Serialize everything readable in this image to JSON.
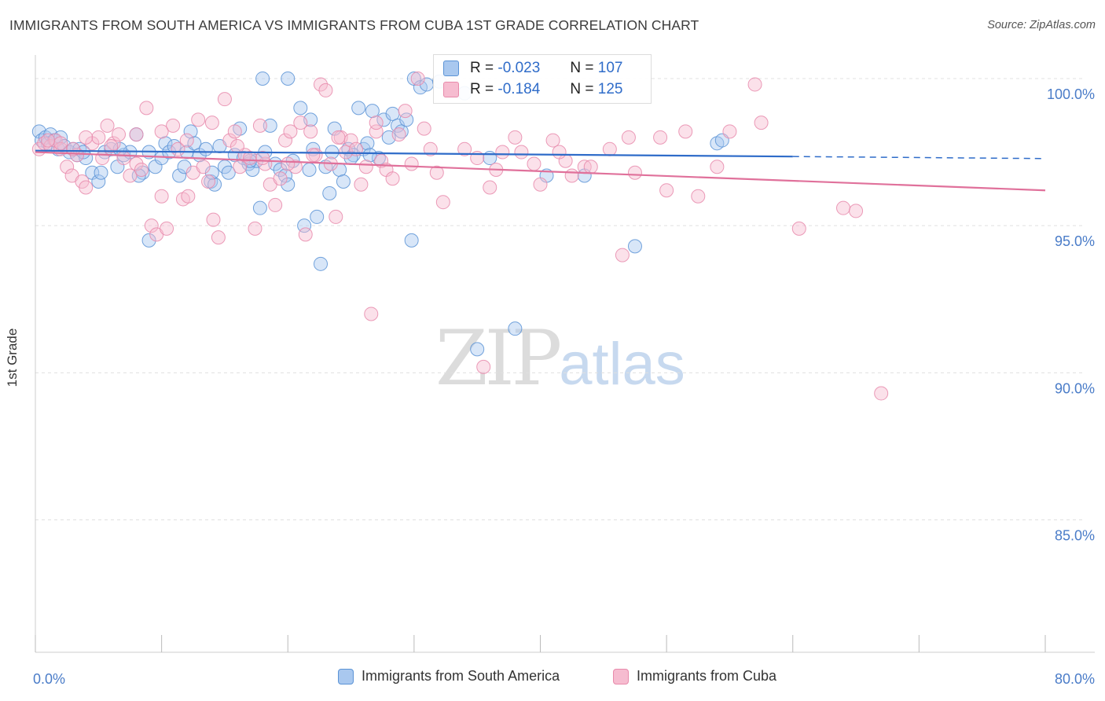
{
  "header": {
    "title": "IMMIGRANTS FROM SOUTH AMERICA VS IMMIGRANTS FROM CUBA 1ST GRADE CORRELATION CHART",
    "source": "Source: ZipAtlas.com"
  },
  "watermark": {
    "zip": "ZIP",
    "atlas": "atlas"
  },
  "stats": {
    "rows": [
      {
        "r_label": "R =",
        "r_value": "-0.023",
        "n_label": "N =",
        "n_value": "107"
      },
      {
        "r_label": "R =",
        "r_value": "-0.184",
        "n_label": "N =",
        "n_value": "125"
      }
    ]
  },
  "legend": {
    "items": [
      {
        "label": "Immigrants from South America"
      },
      {
        "label": "Immigrants from Cuba"
      }
    ]
  },
  "colors": {
    "blue_fill": "#a9c8ef",
    "blue_stroke": "#5b93d6",
    "blue_line": "#2f6cc9",
    "pink_fill": "#f6bcd0",
    "pink_stroke": "#e88aab",
    "pink_line": "#e0719b",
    "grid": "#e0e0e0",
    "tick_text": "#4a7cc8"
  },
  "chart_data": {
    "type": "scatter",
    "title": "IMMIGRANTS FROM SOUTH AMERICA VS IMMIGRANTS FROM CUBA 1ST GRADE CORRELATION CHART",
    "xlabel": "",
    "ylabel": "1st Grade",
    "xlim": [
      0,
      80
    ],
    "ylim": [
      80.5,
      100.8
    ],
    "x_tick_labels": [
      "0.0%",
      "80.0%"
    ],
    "y_ticks": [
      100,
      95,
      90,
      85
    ],
    "y_tick_labels": [
      "100.0%",
      "95.0%",
      "90.0%",
      "85.0%"
    ],
    "grid": true,
    "legend_position": "bottom",
    "series": [
      {
        "name": "Immigrants from South America",
        "color": "#5b93d6",
        "trend": {
          "x": [
            0,
            60
          ],
          "y": [
            97.55,
            97.35
          ],
          "dashed_to": 80,
          "dashed_y": 97.28
        },
        "points": [
          [
            0.3,
            98.2
          ],
          [
            0.5,
            97.9
          ],
          [
            0.8,
            98.0
          ],
          [
            1.0,
            97.8
          ],
          [
            1.2,
            98.1
          ],
          [
            1.5,
            97.9
          ],
          [
            1.8,
            97.6
          ],
          [
            2.0,
            98.0
          ],
          [
            2.3,
            97.7
          ],
          [
            2.7,
            97.5
          ],
          [
            3.0,
            97.6
          ],
          [
            3.3,
            97.4
          ],
          [
            3.5,
            97.6
          ],
          [
            4.0,
            97.3
          ],
          [
            4.5,
            96.8
          ],
          [
            5.0,
            96.5
          ],
          [
            5.5,
            97.5
          ],
          [
            6.0,
            97.6
          ],
          [
            6.5,
            97.0
          ],
          [
            7.0,
            97.4
          ],
          [
            7.5,
            97.5
          ],
          [
            8.0,
            98.1
          ],
          [
            8.5,
            96.8
          ],
          [
            9.0,
            97.5
          ],
          [
            9.5,
            97.0
          ],
          [
            10.0,
            97.3
          ],
          [
            10.3,
            97.8
          ],
          [
            10.6,
            97.5
          ],
          [
            11.0,
            97.7
          ],
          [
            11.4,
            96.7
          ],
          [
            11.8,
            97.0
          ],
          [
            12.0,
            97.5
          ],
          [
            12.3,
            98.2
          ],
          [
            12.6,
            97.8
          ],
          [
            13.0,
            97.4
          ],
          [
            13.5,
            97.6
          ],
          [
            13.9,
            96.5
          ],
          [
            14.2,
            96.4
          ],
          [
            14.6,
            97.7
          ],
          [
            15.0,
            97.0
          ],
          [
            15.3,
            96.8
          ],
          [
            15.8,
            97.4
          ],
          [
            16.2,
            98.3
          ],
          [
            16.5,
            97.3
          ],
          [
            16.9,
            97.1
          ],
          [
            17.2,
            96.9
          ],
          [
            17.5,
            97.2
          ],
          [
            17.8,
            95.6
          ],
          [
            18.2,
            97.5
          ],
          [
            18.6,
            98.4
          ],
          [
            19.0,
            97.1
          ],
          [
            19.4,
            96.9
          ],
          [
            19.8,
            96.7
          ],
          [
            20.0,
            96.4
          ],
          [
            20.4,
            97.2
          ],
          [
            21.0,
            99.0
          ],
          [
            21.3,
            95.0
          ],
          [
            21.7,
            96.9
          ],
          [
            22.0,
            97.6
          ],
          [
            22.3,
            95.3
          ],
          [
            22.6,
            93.7
          ],
          [
            23.0,
            97.0
          ],
          [
            23.3,
            96.1
          ],
          [
            23.7,
            98.3
          ],
          [
            24.1,
            96.9
          ],
          [
            24.4,
            96.5
          ],
          [
            24.8,
            97.6
          ],
          [
            25.2,
            97.4
          ],
          [
            25.6,
            99.0
          ],
          [
            26.0,
            97.6
          ],
          [
            26.3,
            97.8
          ],
          [
            26.7,
            98.9
          ],
          [
            27.2,
            97.3
          ],
          [
            27.6,
            98.6
          ],
          [
            28.0,
            98.0
          ],
          [
            28.3,
            98.8
          ],
          [
            28.7,
            98.4
          ],
          [
            29.0,
            98.2
          ],
          [
            29.4,
            98.6
          ],
          [
            30.0,
            100.0
          ],
          [
            30.5,
            99.7
          ],
          [
            31.0,
            99.8
          ],
          [
            32.0,
            99.9
          ],
          [
            33.0,
            99.6
          ],
          [
            34.0,
            99.5
          ],
          [
            36.0,
            97.3
          ],
          [
            29.8,
            94.5
          ],
          [
            35.0,
            90.8
          ],
          [
            38.0,
            91.5
          ],
          [
            40.5,
            96.7
          ],
          [
            43.5,
            96.7
          ],
          [
            47.5,
            94.3
          ],
          [
            54.0,
            97.8
          ],
          [
            54.4,
            97.9
          ],
          [
            18.0,
            100.0
          ],
          [
            20.0,
            100.0
          ],
          [
            21.8,
            98.6
          ],
          [
            23.5,
            97.5
          ],
          [
            25.0,
            97.3
          ],
          [
            26.5,
            97.4
          ],
          [
            9.0,
            94.5
          ],
          [
            17.0,
            97.2
          ],
          [
            14.0,
            96.8
          ],
          [
            8.2,
            96.7
          ],
          [
            6.7,
            97.6
          ],
          [
            5.2,
            96.8
          ],
          [
            3.8,
            97.5
          ]
        ]
      },
      {
        "name": "Immigrants from Cuba",
        "color": "#e88aab",
        "trend": {
          "x": [
            0,
            80
          ],
          "y": [
            97.5,
            96.2
          ]
        },
        "points": [
          [
            0.3,
            97.6
          ],
          [
            0.7,
            97.8
          ],
          [
            1.2,
            97.7
          ],
          [
            1.6,
            97.9
          ],
          [
            2.0,
            97.6
          ],
          [
            2.5,
            97.0
          ],
          [
            2.9,
            96.7
          ],
          [
            3.3,
            97.4
          ],
          [
            3.7,
            96.5
          ],
          [
            4.0,
            96.3
          ],
          [
            4.5,
            97.8
          ],
          [
            5.0,
            98.0
          ],
          [
            5.3,
            97.3
          ],
          [
            5.7,
            98.4
          ],
          [
            6.2,
            97.8
          ],
          [
            6.6,
            98.1
          ],
          [
            7.0,
            97.3
          ],
          [
            7.5,
            96.7
          ],
          [
            8.0,
            97.1
          ],
          [
            8.4,
            96.9
          ],
          [
            8.8,
            99.0
          ],
          [
            9.2,
            95.0
          ],
          [
            9.6,
            94.7
          ],
          [
            10.0,
            96.0
          ],
          [
            10.4,
            94.9
          ],
          [
            10.9,
            98.4
          ],
          [
            11.3,
            97.6
          ],
          [
            11.7,
            95.9
          ],
          [
            12.1,
            96.0
          ],
          [
            12.5,
            96.8
          ],
          [
            12.9,
            98.6
          ],
          [
            13.3,
            97.0
          ],
          [
            13.7,
            96.5
          ],
          [
            14.1,
            95.2
          ],
          [
            14.5,
            94.6
          ],
          [
            15.0,
            99.3
          ],
          [
            15.4,
            97.9
          ],
          [
            15.8,
            98.2
          ],
          [
            16.2,
            97.0
          ],
          [
            16.6,
            97.4
          ],
          [
            17.0,
            97.3
          ],
          [
            17.4,
            94.9
          ],
          [
            17.8,
            98.4
          ],
          [
            18.2,
            97.1
          ],
          [
            18.6,
            96.4
          ],
          [
            19.0,
            95.7
          ],
          [
            19.4,
            96.6
          ],
          [
            19.8,
            97.9
          ],
          [
            20.2,
            98.2
          ],
          [
            20.6,
            97.0
          ],
          [
            21.0,
            98.5
          ],
          [
            21.4,
            94.7
          ],
          [
            21.8,
            98.2
          ],
          [
            22.2,
            97.4
          ],
          [
            22.6,
            99.8
          ],
          [
            23.0,
            99.6
          ],
          [
            23.4,
            97.1
          ],
          [
            23.8,
            95.3
          ],
          [
            24.2,
            98.0
          ],
          [
            24.6,
            97.5
          ],
          [
            25.0,
            97.9
          ],
          [
            25.4,
            97.6
          ],
          [
            25.8,
            96.4
          ],
          [
            26.2,
            97.0
          ],
          [
            26.6,
            92.0
          ],
          [
            27.0,
            98.2
          ],
          [
            27.4,
            97.2
          ],
          [
            27.8,
            96.9
          ],
          [
            28.3,
            96.6
          ],
          [
            28.8,
            98.1
          ],
          [
            29.3,
            98.9
          ],
          [
            29.8,
            97.1
          ],
          [
            30.3,
            100.0
          ],
          [
            30.8,
            98.3
          ],
          [
            31.3,
            97.6
          ],
          [
            31.8,
            96.8
          ],
          [
            32.3,
            95.8
          ],
          [
            33.0,
            99.8
          ],
          [
            34.0,
            97.6
          ],
          [
            35.0,
            97.3
          ],
          [
            35.5,
            90.2
          ],
          [
            36.0,
            96.3
          ],
          [
            37.0,
            97.5
          ],
          [
            38.0,
            98.0
          ],
          [
            38.5,
            97.5
          ],
          [
            39.5,
            97.1
          ],
          [
            40.0,
            96.4
          ],
          [
            41.0,
            97.9
          ],
          [
            42.0,
            97.2
          ],
          [
            42.5,
            96.7
          ],
          [
            43.5,
            97.0
          ],
          [
            44.0,
            97.0
          ],
          [
            45.5,
            97.6
          ],
          [
            47.0,
            98.0
          ],
          [
            47.5,
            96.8
          ],
          [
            49.5,
            98.0
          ],
          [
            50.0,
            96.2
          ],
          [
            51.5,
            98.2
          ],
          [
            52.5,
            96.0
          ],
          [
            54.0,
            97.0
          ],
          [
            55.0,
            98.2
          ],
          [
            57.0,
            99.8
          ],
          [
            57.5,
            98.5
          ],
          [
            60.5,
            94.9
          ],
          [
            64.0,
            95.6
          ],
          [
            65.0,
            95.5
          ],
          [
            67.0,
            89.3
          ],
          [
            46.5,
            94.0
          ],
          [
            41.5,
            97.5
          ],
          [
            36.5,
            96.9
          ],
          [
            27.0,
            98.5
          ],
          [
            24.0,
            98.0
          ],
          [
            22.0,
            97.4
          ],
          [
            20.0,
            97.1
          ],
          [
            18.0,
            97.3
          ],
          [
            16.0,
            97.7
          ],
          [
            14.0,
            98.5
          ],
          [
            12.0,
            97.9
          ],
          [
            10.0,
            98.2
          ],
          [
            8.0,
            98.1
          ],
          [
            6.0,
            97.7
          ],
          [
            4.0,
            98.0
          ],
          [
            2.0,
            97.8
          ],
          [
            1.0,
            97.9
          ],
          [
            3.0,
            97.6
          ]
        ]
      }
    ]
  }
}
